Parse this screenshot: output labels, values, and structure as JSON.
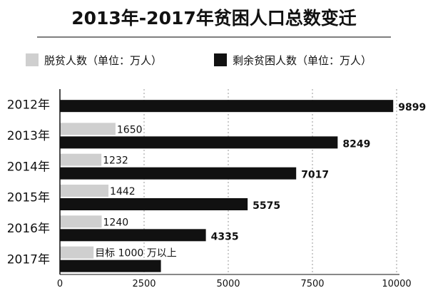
{
  "chart_data": {
    "type": "bar",
    "orientation": "horizontal",
    "title": "2013年-2017年贫困人口总数变迁",
    "categories": [
      "2012年",
      "2013年",
      "2014年",
      "2015年",
      "2016年",
      "2017年"
    ],
    "series": [
      {
        "name": "脱贫人数（单位：万人）",
        "color": "#cfcfcf",
        "values": [
          null,
          1650,
          1232,
          1442,
          1240,
          1000
        ],
        "labels": [
          "",
          "1650",
          "1232",
          "1442",
          "1240",
          "目标 1000 万以上"
        ]
      },
      {
        "name": "剩余贫困人数（单位：万人）",
        "color": "#111111",
        "values": [
          9899,
          8249,
          7017,
          5575,
          4335,
          3000
        ],
        "labels": [
          "9899",
          "8249",
          "7017",
          "5575",
          "4335",
          ""
        ]
      }
    ],
    "xlim": [
      0,
      10000
    ],
    "xticks": [
      0,
      2500,
      5000,
      7500,
      10000
    ],
    "xtick_labels": [
      "0",
      "2500",
      "5000",
      "7500",
      "10000"
    ],
    "grid": "vertical dotted",
    "legend_position": "top"
  }
}
